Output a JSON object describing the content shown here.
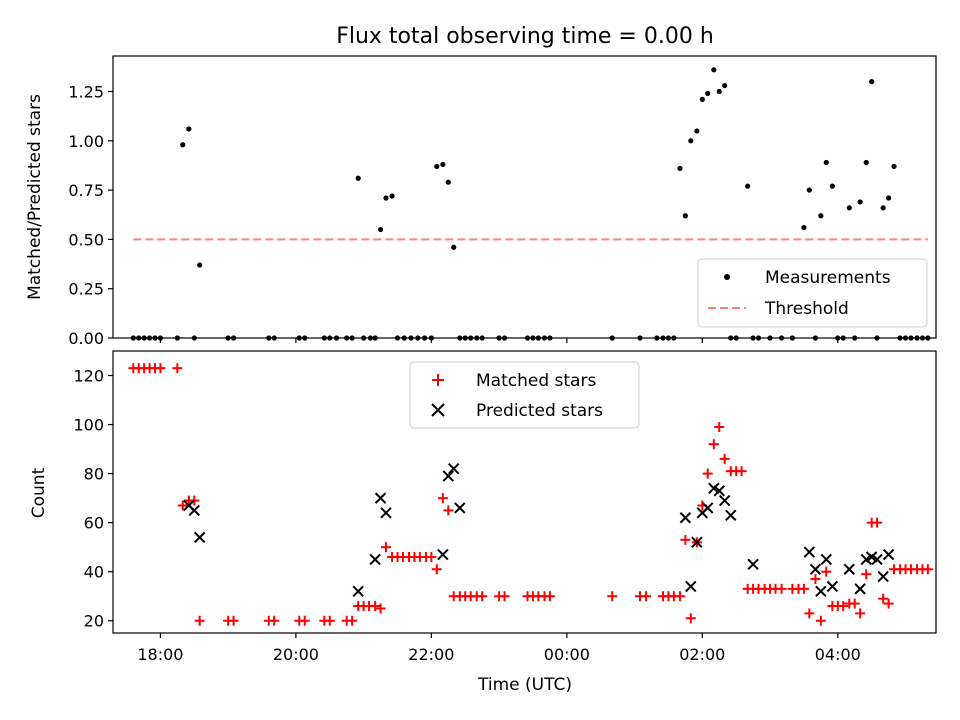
{
  "chart_data": [
    {
      "type": "scatter",
      "title": "Flux total observing time = 0.00 h",
      "xlabel": "",
      "ylabel": "Matched/Predicted stars",
      "xlim": [
        17.3,
        29.45
      ],
      "ylim": [
        0,
        1.43
      ],
      "yticks": [
        0,
        0.25,
        0.5,
        0.75,
        1.0,
        1.25
      ],
      "ytick_labels": [
        "0.00",
        "0.25",
        "0.50",
        "0.75",
        "1.00",
        "1.25"
      ],
      "legend": {
        "position": "bottom-right",
        "entries": [
          "Measurements",
          "Threshold"
        ]
      },
      "series": [
        {
          "name": "Measurements",
          "color": "#000000",
          "marker": "dot",
          "x": [
            17.6,
            17.68,
            17.76,
            17.84,
            17.92,
            18.0,
            18.25,
            18.33,
            18.42,
            18.5,
            18.58,
            19.0,
            19.08,
            19.6,
            19.68,
            20.05,
            20.13,
            20.42,
            20.5,
            20.6,
            20.75,
            20.83,
            20.92,
            21.0,
            21.1,
            21.17,
            21.25,
            21.33,
            21.42,
            21.5,
            21.6,
            21.7,
            21.8,
            21.9,
            22.0,
            22.08,
            22.17,
            22.25,
            22.33,
            22.42,
            22.5,
            22.58,
            22.67,
            22.75,
            23.0,
            23.08,
            23.42,
            23.5,
            23.58,
            23.67,
            23.75,
            24.67,
            25.08,
            25.33,
            25.42,
            25.5,
            25.58,
            25.67,
            25.75,
            25.83,
            25.92,
            26.0,
            26.08,
            26.17,
            26.25,
            26.33,
            26.42,
            26.5,
            26.67,
            26.75,
            26.83,
            27.0,
            27.17,
            27.33,
            27.5,
            27.58,
            27.67,
            27.75,
            27.83,
            27.92,
            28.0,
            28.08,
            28.17,
            28.25,
            28.33,
            28.42,
            28.5,
            28.58,
            28.67,
            28.75,
            28.83,
            28.92,
            29.0,
            29.08,
            29.17,
            29.25,
            29.33
          ],
          "y": [
            0,
            0,
            0,
            0,
            0,
            0,
            0,
            0.98,
            1.06,
            0,
            0.37,
            0,
            0,
            0,
            0,
            0,
            0,
            0,
            0,
            0,
            0,
            0,
            0.81,
            0,
            0,
            0,
            0.55,
            0.71,
            0.72,
            0,
            0,
            0,
            0,
            0,
            0,
            0.87,
            0.88,
            0.79,
            0.46,
            0,
            0,
            0,
            0,
            0,
            0,
            0,
            0,
            0,
            0,
            0,
            0,
            0,
            0,
            0,
            0,
            0,
            0,
            0.86,
            0.62,
            1.0,
            1.05,
            1.21,
            1.24,
            1.36,
            1.25,
            1.28,
            0,
            0,
            0.77,
            0,
            0,
            0,
            0,
            0,
            0.56,
            0.75,
            0,
            0.62,
            0.89,
            0.77,
            0,
            0,
            0.66,
            0,
            0.69,
            0.89,
            1.3,
            0,
            0.66,
            0.71,
            0.87,
            0,
            0,
            0,
            0,
            0,
            0
          ]
        },
        {
          "name": "Threshold",
          "color": "#ff8080",
          "style": "dashed",
          "x": [
            17.6,
            29.33
          ],
          "y": [
            0.5,
            0.5
          ]
        }
      ]
    },
    {
      "type": "scatter",
      "title": "",
      "xlabel": "Time (UTC)",
      "ylabel": "Count",
      "xlim": [
        17.3,
        29.45
      ],
      "ylim": [
        15,
        130
      ],
      "yticks": [
        20,
        40,
        60,
        80,
        100,
        120
      ],
      "xticks": [
        18,
        20,
        22,
        24,
        26,
        28
      ],
      "xtick_labels": [
        "18:00",
        "20:00",
        "22:00",
        "00:00",
        "02:00",
        "04:00"
      ],
      "legend": {
        "position": "top-center",
        "entries": [
          "Matched stars",
          "Predicted stars"
        ]
      },
      "series": [
        {
          "name": "Matched stars",
          "color": "#ff0000",
          "marker": "plus",
          "x": [
            17.6,
            17.68,
            17.76,
            17.84,
            17.92,
            18.0,
            18.25,
            18.33,
            18.42,
            18.5,
            18.58,
            19.0,
            19.08,
            19.6,
            19.68,
            20.05,
            20.13,
            20.42,
            20.5,
            20.75,
            20.83,
            20.92,
            21.0,
            21.08,
            21.17,
            21.25,
            21.33,
            21.42,
            21.5,
            21.58,
            21.67,
            21.75,
            21.83,
            21.92,
            22.0,
            22.08,
            22.17,
            22.25,
            22.33,
            22.42,
            22.5,
            22.58,
            22.67,
            22.75,
            23.0,
            23.08,
            23.42,
            23.5,
            23.58,
            23.67,
            23.75,
            24.67,
            25.08,
            25.17,
            25.42,
            25.5,
            25.58,
            25.67,
            25.75,
            25.83,
            25.92,
            26.0,
            26.08,
            26.17,
            26.25,
            26.33,
            26.42,
            26.5,
            26.58,
            26.67,
            26.75,
            26.83,
            26.92,
            27.0,
            27.08,
            27.17,
            27.33,
            27.42,
            27.5,
            27.58,
            27.67,
            27.75,
            27.83,
            27.92,
            28.0,
            28.08,
            28.17,
            28.25,
            28.33,
            28.42,
            28.5,
            28.58,
            28.67,
            28.75,
            28.83,
            28.92,
            29.0,
            29.08,
            29.17,
            29.25,
            29.33
          ],
          "y": [
            123,
            123,
            123,
            123,
            123,
            123,
            123,
            67,
            69,
            69,
            20,
            20,
            20,
            20,
            20,
            20,
            20,
            20,
            20,
            20,
            20,
            26,
            26,
            26,
            26,
            25,
            50,
            46,
            46,
            46,
            46,
            46,
            46,
            46,
            46,
            41,
            70,
            65,
            30,
            30,
            30,
            30,
            30,
            30,
            30,
            30,
            30,
            30,
            30,
            30,
            30,
            30,
            30,
            30,
            30,
            30,
            30,
            30,
            53,
            21,
            52,
            67,
            80,
            92,
            99,
            86,
            81,
            81,
            81,
            33,
            33,
            33,
            33,
            33,
            33,
            33,
            33,
            33,
            33,
            23,
            37,
            20,
            40,
            26,
            26,
            26,
            27,
            27,
            23,
            39,
            60,
            60,
            29,
            27,
            41,
            41,
            41,
            41,
            41,
            41,
            41
          ]
        },
        {
          "name": "Predicted stars",
          "color": "#000000",
          "marker": "x",
          "x": [
            18.42,
            18.5,
            18.58,
            20.92,
            21.17,
            21.25,
            21.33,
            22.17,
            22.25,
            22.33,
            22.42,
            25.75,
            25.83,
            25.92,
            26.0,
            26.08,
            26.17,
            26.25,
            26.33,
            26.42,
            26.75,
            27.58,
            27.67,
            27.75,
            27.83,
            27.92,
            28.17,
            28.33,
            28.42,
            28.5,
            28.58,
            28.67,
            28.75
          ],
          "y": [
            67,
            65,
            54,
            32,
            45,
            70,
            64,
            47,
            79,
            82,
            66,
            62,
            34,
            52,
            64,
            66,
            74,
            73,
            69,
            63,
            43,
            48,
            41,
            32,
            45,
            34,
            41,
            33,
            45,
            46,
            45,
            38,
            47
          ]
        }
      ]
    }
  ]
}
